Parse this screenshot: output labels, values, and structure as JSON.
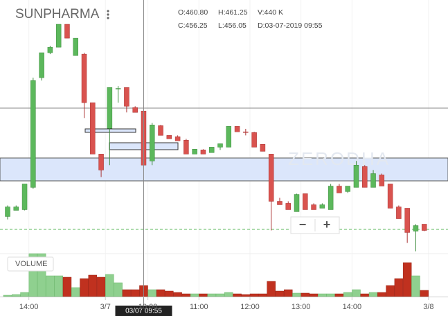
{
  "chart_data": {
    "type": "candlestick",
    "title": "SUNPHARMA",
    "info": [
      "O:460.80",
      "H:461.25",
      "V:440 K",
      "C:456.25",
      "L:456.05",
      "D:03-07-2019 09:55"
    ],
    "watermark": "ZERODHA",
    "zoom_buttons": [
      "−",
      "+"
    ],
    "volume_label": "VOLUME",
    "crosshair": {
      "index": 16,
      "label": "03/07 09:55"
    },
    "xticks": [
      {
        "value": 3,
        "label": "14:00"
      },
      {
        "value": 12,
        "label": "3/7"
      },
      {
        "value": 17,
        "label": "10:00"
      },
      {
        "value": 23,
        "label": "11:00"
      },
      {
        "value": 29,
        "label": "12:00"
      },
      {
        "value": 35,
        "label": "13:00"
      },
      {
        "value": 41,
        "label": "14:00"
      },
      {
        "value": 50,
        "label": "3/8"
      }
    ],
    "ylim": [
      448.87,
      470.13
    ],
    "volume_ylim": [
      0,
      1760
    ],
    "up_color": "#5cb85c",
    "down_color": "#d9534f",
    "volume_up_color": "#8fd08f",
    "volume_down_color": "#c0311f",
    "open": [
      451.93,
      452.45,
      452.51,
      454.38,
      463.6,
      465.7,
      466.16,
      468.09,
      465.46,
      465.58,
      461.5,
      457.18,
      459.34,
      462.66,
      462.78,
      461.09,
      460.8,
      456.6,
      459.57,
      458.75,
      458.64,
      458.35,
      457.18,
      457.53,
      457.3,
      457.76,
      457.76,
      459.51,
      459.05,
      458.99,
      458.0,
      457.18,
      453.21,
      453.04,
      452.34,
      453.85,
      452.92,
      452.63,
      452.51,
      454.49,
      454.03,
      454.38,
      456.13,
      454.38,
      455.43,
      454.67,
      452.74,
      452.63,
      450.7,
      451.29
    ],
    "high": [
      452.86,
      452.86,
      454.67,
      463.6,
      465.7,
      466.28,
      468.09,
      468.09,
      466.92,
      465.7,
      461.5,
      457.18,
      462.78,
      462.9,
      462.78,
      461.2,
      461.25,
      459.8,
      459.63,
      458.75,
      458.75,
      458.46,
      457.59,
      457.59,
      457.76,
      458.05,
      459.51,
      459.51,
      459.3,
      459.05,
      458.0,
      457.18,
      453.5,
      453.21,
      453.85,
      453.85,
      453.04,
      453.04,
      454.67,
      454.67,
      454.49,
      456.6,
      456.25,
      455.84,
      455.54,
      454.67,
      452.86,
      452.63,
      451.29,
      451.29
    ],
    "low": [
      451.69,
      452.45,
      452.45,
      454.26,
      463.36,
      465.58,
      466.16,
      466.92,
      465.46,
      460.21,
      457.18,
      455.25,
      456.25,
      461.5,
      460.68,
      460.68,
      456.05,
      456.25,
      458.75,
      458.46,
      458.29,
      457.18,
      457.18,
      457.18,
      457.3,
      457.53,
      457.76,
      459.05,
      458.75,
      457.76,
      457.41,
      450.76,
      452.92,
      452.51,
      452.34,
      452.51,
      452.51,
      452.63,
      452.51,
      453.91,
      453.91,
      454.38,
      454.38,
      454.38,
      454.49,
      452.63,
      451.75,
      449.71,
      449.01,
      450.7
    ],
    "close": [
      452.74,
      452.74,
      454.67,
      463.36,
      465.7,
      466.16,
      468.09,
      466.92,
      466.92,
      461.5,
      457.18,
      455.84,
      462.78,
      462.7,
      461.2,
      460.68,
      456.25,
      459.63,
      458.75,
      458.46,
      458.29,
      457.18,
      457.59,
      457.18,
      457.76,
      458.05,
      459.51,
      459.05,
      459.0,
      457.76,
      457.41,
      453.21,
      452.92,
      452.51,
      453.79,
      452.51,
      452.51,
      452.92,
      454.49,
      453.91,
      454.49,
      456.25,
      454.38,
      455.54,
      454.49,
      452.63,
      451.75,
      450.59,
      451.17,
      450.76
    ],
    "volume": [
      55,
      83,
      165,
      1705,
      1705,
      825,
      825,
      770,
      358,
      715,
      853,
      770,
      880,
      550,
      275,
      275,
      440,
      275,
      275,
      220,
      165,
      110,
      110,
      110,
      110,
      110,
      165,
      110,
      83,
      110,
      110,
      605,
      220,
      275,
      138,
      138,
      110,
      110,
      110,
      110,
      165,
      275,
      110,
      165,
      165,
      440,
      715,
      1348,
      825,
      248
    ]
  }
}
